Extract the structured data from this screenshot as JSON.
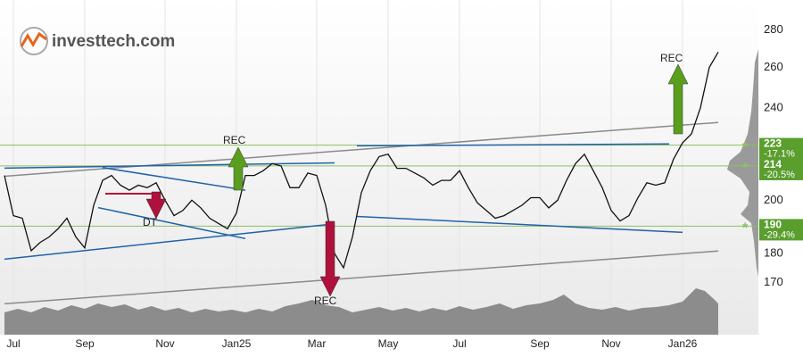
{
  "chart_data": {
    "type": "line",
    "logo": "investtech.com",
    "log_scale": true,
    "grid": true,
    "color": "#111111",
    "values": [
      210,
      194,
      193,
      181,
      184,
      186,
      189,
      193,
      186,
      182,
      198,
      208,
      210,
      206,
      204,
      206,
      205,
      207,
      200,
      194,
      196,
      200,
      197,
      193,
      191,
      189,
      195,
      210,
      210,
      212,
      215,
      214,
      205,
      205,
      211,
      210,
      198,
      180,
      175,
      186,
      203,
      212,
      218,
      219,
      213,
      213,
      211,
      209,
      206,
      208,
      208,
      212,
      205,
      199,
      196,
      193,
      194,
      196,
      198,
      201,
      201,
      197,
      200,
      208,
      215,
      219,
      212,
      205,
      196,
      192,
      194,
      201,
      207,
      206,
      207,
      217,
      224,
      228,
      240,
      260,
      268
    ],
    "xlim": [
      0,
      80
    ],
    "xticks": [
      {
        "value": 1,
        "label": "Jul"
      },
      {
        "value": 9,
        "label": "Sep"
      },
      {
        "value": 18,
        "label": "Nov"
      },
      {
        "value": 26,
        "label": "Jan25"
      },
      {
        "value": 35,
        "label": "Mar"
      },
      {
        "value": 43,
        "label": "May"
      },
      {
        "value": 51,
        "label": "Jul"
      },
      {
        "value": 60,
        "label": "Sep"
      },
      {
        "value": 68,
        "label": "Nov"
      },
      {
        "value": 76,
        "label": "Jan26"
      }
    ],
    "ylim": [
      152,
      297
    ],
    "yticks": [
      170,
      180,
      200,
      240,
      260,
      280
    ],
    "levels": [
      {
        "value": 223,
        "change": "-17.1%"
      },
      {
        "value": 214,
        "change": "-20.5%"
      },
      {
        "value": 190,
        "change": "-29.4%"
      }
    ],
    "level_color": "#8dc063",
    "trendlines": [
      {
        "color": "#8a8a8a",
        "x": [
          0,
          80
        ],
        "values": [
          209.7,
          233.2
        ]
      },
      {
        "color": "#8a8a8a",
        "x": [
          0,
          80
        ],
        "values": [
          163,
          180.9
        ]
      },
      {
        "color": "#1f63a8",
        "x": [
          0,
          37
        ],
        "values": [
          213.1,
          215.3
        ]
      },
      {
        "color": "#1f63a8",
        "x": [
          0,
          37
        ],
        "values": [
          178,
          190.9
        ]
      },
      {
        "color": "#1f63a8",
        "x": [
          11,
          27
        ],
        "values": [
          213.3,
          204
        ]
      },
      {
        "color": "#1f63a8",
        "x": [
          10.5,
          27
        ],
        "values": [
          197.1,
          185.4
        ]
      },
      {
        "color": "#1f63a8",
        "x": [
          39.5,
          74.5
        ],
        "values": [
          222.7,
          223.5
        ]
      },
      {
        "color": "#1f63a8",
        "x": [
          39.5,
          76
        ],
        "values": [
          193.7,
          187.7
        ]
      }
    ],
    "annotations": [
      "REC",
      "DT",
      "REC",
      "REC"
    ]
  }
}
